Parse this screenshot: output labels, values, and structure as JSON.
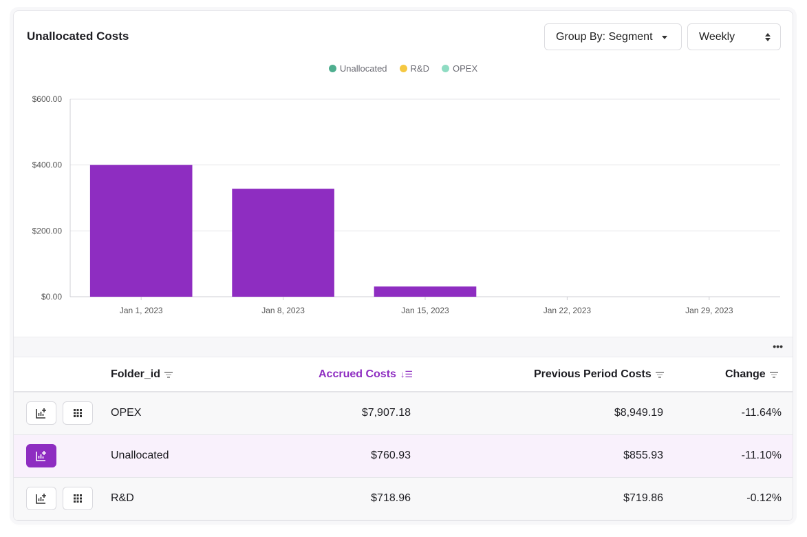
{
  "header": {
    "title": "Unallocated Costs",
    "group_by_label": "Group By: Segment",
    "period_value": "Weekly"
  },
  "legend": [
    {
      "label": "Unallocated",
      "color": "#4fae8f"
    },
    {
      "label": "R&D",
      "color": "#f5c842"
    },
    {
      "label": "OPEX",
      "color": "#8fdcc3"
    }
  ],
  "chart_data": {
    "type": "bar",
    "categories": [
      "Jan 1, 2023",
      "Jan 8, 2023",
      "Jan 15, 2023",
      "Jan 22, 2023",
      "Jan 29, 2023"
    ],
    "values": [
      400,
      328,
      31,
      0,
      0
    ],
    "ylim": [
      0,
      600
    ],
    "yticks": [
      "$0.00",
      "$200.00",
      "$400.00",
      "$600.00"
    ],
    "ytick_values": [
      0,
      200,
      400,
      600
    ],
    "bar_color": "#8e2dc1",
    "grid": true,
    "legend_position": "top-center"
  },
  "table": {
    "more_label": "•••",
    "columns": {
      "folder": "Folder_id",
      "accrued": "Accrued Costs",
      "previous": "Previous Period Costs",
      "change": "Change"
    },
    "rows": [
      {
        "folder": "OPEX",
        "accrued": "$7,907.18",
        "previous": "$8,949.19",
        "change": "-11.64%",
        "selected": false
      },
      {
        "folder": "Unallocated",
        "accrued": "$760.93",
        "previous": "$855.93",
        "change": "-11.10%",
        "selected": true
      },
      {
        "folder": "R&D",
        "accrued": "$718.96",
        "previous": "$719.86",
        "change": "-0.12%",
        "selected": false
      }
    ]
  },
  "colors": {
    "accent": "#8e2dc1"
  }
}
